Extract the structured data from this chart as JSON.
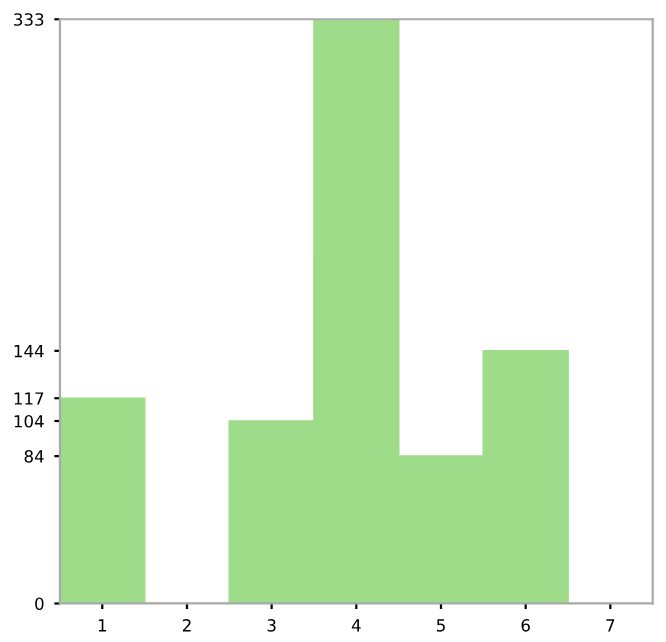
{
  "chart_data": {
    "type": "bar",
    "categories": [
      "1",
      "2",
      "3",
      "4",
      "5",
      "6",
      "7"
    ],
    "values": [
      117,
      0,
      104,
      333,
      84,
      144,
      0
    ],
    "color": "#9edc8a",
    "ylim": [
      0,
      333
    ],
    "yticks": [
      0,
      84,
      104,
      117,
      144,
      333
    ],
    "grid": false,
    "legend": false
  }
}
